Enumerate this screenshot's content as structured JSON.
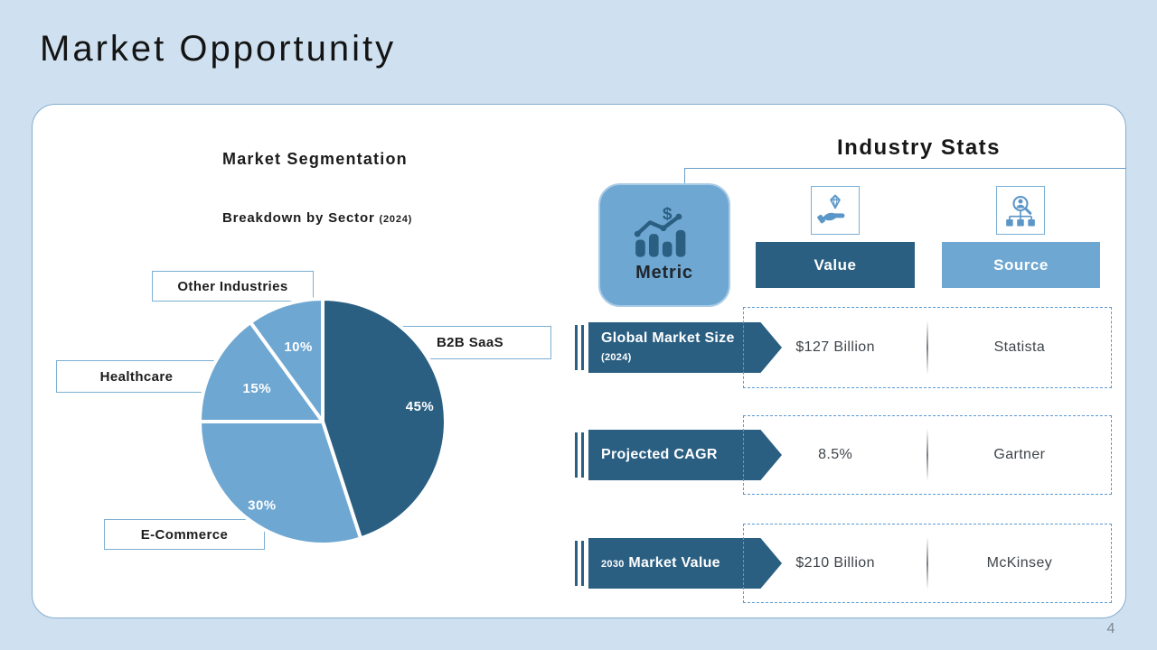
{
  "title": "Market Opportunity",
  "page": {
    "number": "4"
  },
  "segmentation": {
    "title": "Market Segmentation",
    "subtitle": "Breakdown by Sector",
    "subtitle_year": "(2024)"
  },
  "chart_data": {
    "type": "pie",
    "title": "Market Segmentation",
    "subtitle": "Breakdown by Sector (2024)",
    "categories": [
      "B2B SaaS",
      "E-Commerce",
      "Healthcare",
      "Other Industries"
    ],
    "values": [
      45,
      30,
      15,
      10
    ],
    "unit": "%",
    "labels": [
      "45%",
      "30%",
      "15%",
      "10%"
    ],
    "colors": [
      "#2a5f82",
      "#6ea7d2",
      "#6ea7d2",
      "#6ea7d2"
    ],
    "start_angle_deg": 0,
    "direction": "clockwise",
    "legend_position": "callout-boxes"
  },
  "industry_stats": {
    "title": "Industry Stats",
    "metric_label": "Metric",
    "metric_icon": "bar-chart-dollar-icon",
    "columns": [
      {
        "label": "Value",
        "icon": "hand-diamond-icon",
        "color": "#2a5f82"
      },
      {
        "label": "Source",
        "icon": "person-search-org-icon",
        "color": "#6ea7d2"
      }
    ],
    "rows": [
      {
        "metric_prefix": "",
        "metric": "Global Market Size",
        "metric_suffix": "(2024)",
        "value": "$127 Billion",
        "source": "Statista"
      },
      {
        "metric_prefix": "",
        "metric": "Projected CAGR",
        "metric_suffix": "",
        "value": "8.5%",
        "source": "Gartner"
      },
      {
        "metric_prefix": "2030",
        "metric": "Market Value",
        "metric_suffix": "",
        "value": "$210 Billion",
        "source": "McKinsey"
      }
    ]
  },
  "colors": {
    "background": "#cfe1f0",
    "card_background": "#ffffff",
    "card_border": "#85aed0",
    "accent_dark_blue": "#2a5f82",
    "accent_light_blue": "#6ea7d2",
    "dashed_border_blue": "#5b9bd5",
    "icon_blue": "#5b96c8",
    "text_dark": "#1c1c1c",
    "cell_text": "#3f454a",
    "page_number_gray": "#7b8794"
  }
}
